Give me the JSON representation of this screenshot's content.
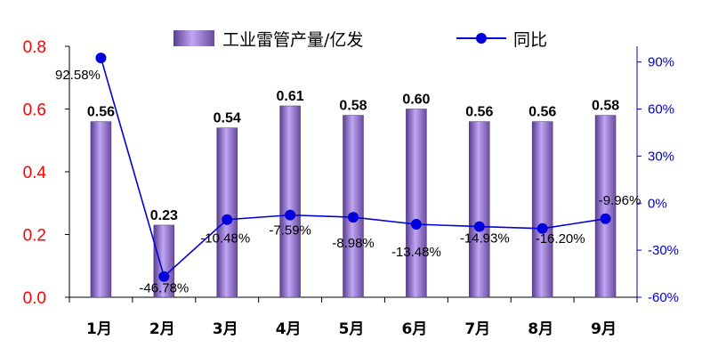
{
  "colors": {
    "left_axis": "#ff0000",
    "right_axis": "#0000cc",
    "bar_light": "#b89cf0",
    "bar_dark": "#5a3d8f",
    "line": "#0000dd"
  },
  "legend": {
    "bar_label": "工业雷管产量/亿发",
    "line_label": "同比"
  },
  "chart_data": {
    "type": "bar",
    "categories": [
      "1月",
      "2月",
      "3月",
      "4月",
      "5月",
      "6月",
      "7月",
      "8月",
      "9月"
    ],
    "series": [
      {
        "name": "工业雷管产量/亿发",
        "type": "bar",
        "axis": "left",
        "values": [
          0.56,
          0.23,
          0.54,
          0.61,
          0.58,
          0.6,
          0.56,
          0.56,
          0.58
        ],
        "labels": [
          "0.56",
          "0.23",
          "0.54",
          "0.61",
          "0.58",
          "0.60",
          "0.56",
          "0.56",
          "0.58"
        ]
      },
      {
        "name": "同比",
        "type": "line",
        "axis": "right",
        "values": [
          92.58,
          -46.78,
          -10.48,
          -7.59,
          -8.98,
          -13.48,
          -14.93,
          -16.2,
          -9.96
        ],
        "labels": [
          "92.58%",
          "-46.78%",
          "-10.48%",
          "-7.59%",
          "-8.98%",
          "-13.48%",
          "-14.93%",
          "-16.20%",
          "-9.96%"
        ]
      }
    ],
    "y_left": {
      "lim": [
        0.0,
        0.8
      ],
      "ticks": [
        "0.0",
        "0.2",
        "0.4",
        "0.6",
        "0.8"
      ],
      "tick_values": [
        0,
        0.2,
        0.4,
        0.6,
        0.8
      ]
    },
    "y_right": {
      "lim": [
        -60,
        100
      ],
      "ticks": [
        "-60%",
        "-30%",
        "0%",
        "30%",
        "60%",
        "90%"
      ],
      "tick_values": [
        -60,
        -30,
        0,
        30,
        60,
        90
      ]
    },
    "legend_position": "top",
    "grid": false
  }
}
